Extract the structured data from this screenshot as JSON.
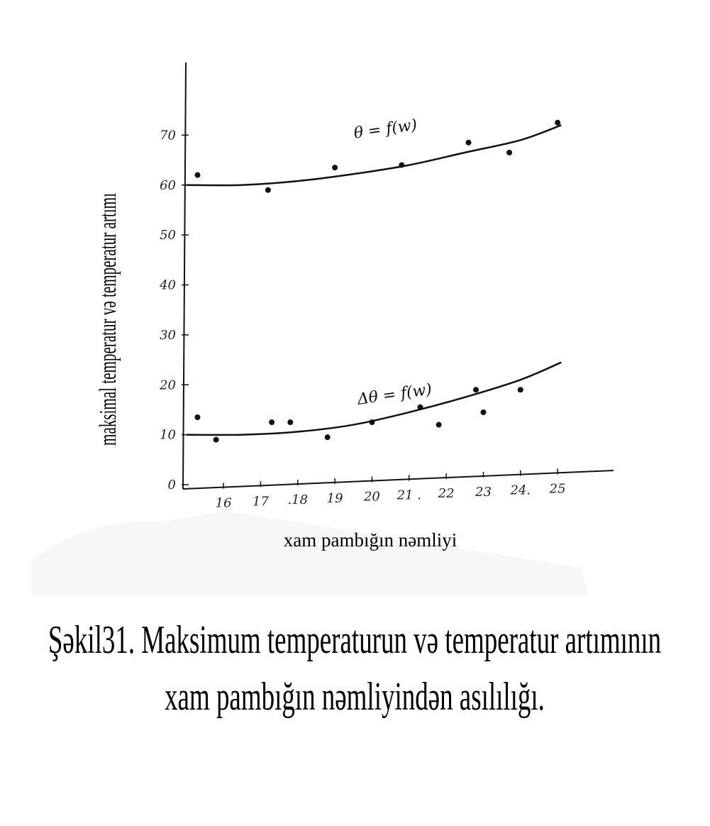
{
  "chart_data": {
    "type": "scatter",
    "title": "",
    "xlabel": "xam pambığın nəmliyi",
    "ylabel": "maksimal temperatur   və temperatur artımı",
    "x_ticks": [
      "16",
      "17",
      ".18",
      "19",
      "20",
      "21 .",
      "22",
      "23",
      "24.",
      "25"
    ],
    "y_ticks": [
      "0",
      "10",
      "20",
      "30",
      "40",
      "50",
      "60",
      "70"
    ],
    "xlim": [
      15.1,
      25.8
    ],
    "ylim": [
      0,
      80
    ],
    "grid": false,
    "series": [
      {
        "name": "θ = f(w)",
        "points": [
          [
            15.3,
            62
          ],
          [
            17.2,
            59
          ],
          [
            19.0,
            63.5
          ],
          [
            20.8,
            64
          ],
          [
            22.6,
            68.5
          ],
          [
            23.7,
            66.5
          ],
          [
            25.0,
            72.5
          ]
        ],
        "fit": [
          [
            15.0,
            60
          ],
          [
            16.5,
            60
          ],
          [
            18.0,
            60.8
          ],
          [
            19.5,
            62.2
          ],
          [
            21.0,
            64
          ],
          [
            22.5,
            66.5
          ],
          [
            24.0,
            69
          ],
          [
            25.1,
            72
          ]
        ]
      },
      {
        "name": "Δθ = f(w)",
        "points": [
          [
            15.3,
            13.5
          ],
          [
            15.8,
            9
          ],
          [
            17.3,
            12.5
          ],
          [
            17.8,
            12.5
          ],
          [
            18.8,
            9.5
          ],
          [
            20.0,
            12.5
          ],
          [
            21.3,
            15.5
          ],
          [
            21.8,
            12
          ],
          [
            22.8,
            19
          ],
          [
            23.0,
            14.5
          ],
          [
            24.0,
            19
          ]
        ],
        "fit": [
          [
            15.0,
            10
          ],
          [
            16.5,
            10
          ],
          [
            18.0,
            10.6
          ],
          [
            19.5,
            12
          ],
          [
            21.0,
            14.5
          ],
          [
            22.5,
            17.5
          ],
          [
            24.0,
            21
          ],
          [
            25.1,
            24.5
          ]
        ]
      }
    ]
  },
  "figure": {
    "caption_line1": "Şəkil31. Maksimum temperaturun və  temperatur artımının",
    "caption_line2": "xam pambığın nəmliyindən asılılığı."
  }
}
